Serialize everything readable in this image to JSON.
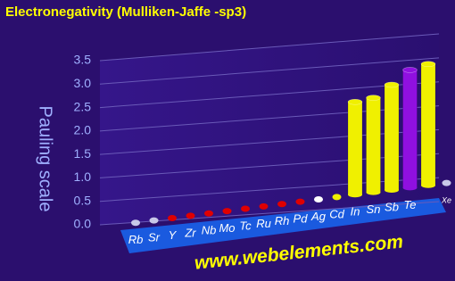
{
  "chart_data": {
    "type": "bar3d",
    "title": "Electronegativity (Mulliken-Jaffe -sp3)",
    "y_label": "Pauling scale",
    "watermark": "www.webelements.com",
    "categories": [
      "Rb",
      "Sr",
      "Y",
      "Zr",
      "Nb",
      "Mo",
      "Tc",
      "Ru",
      "Rh",
      "Pd",
      "Ag",
      "Cd",
      "In",
      "Sn",
      "Sb",
      "Te",
      null,
      "Xe"
    ],
    "values": [
      null,
      null,
      null,
      null,
      null,
      null,
      null,
      null,
      null,
      null,
      null,
      null,
      2.6,
      2.65,
      2.95,
      3.3,
      3.4,
      null
    ],
    "colors": [
      "#c8c8e8",
      "#c8c8e8",
      "#e00000",
      "#e00000",
      "#e00000",
      "#e00000",
      "#e00000",
      "#e00000",
      "#e00000",
      "#e00000",
      "#ffffff",
      "#f0f000",
      "#f0f000",
      "#f0f000",
      "#f0f000",
      "#9010e0",
      "#f0f000",
      "#c8c8e8"
    ],
    "ylim": [
      0,
      3.5
    ],
    "yticks": [
      {
        "value": 0,
        "label": "0.0"
      },
      0.5,
      {
        "value": 1,
        "label": "1.0"
      },
      1.5,
      {
        "value": 2,
        "label": "2.0"
      },
      2.5,
      {
        "value": 3,
        "label": "3.0"
      },
      3.5
    ],
    "grid": true
  }
}
